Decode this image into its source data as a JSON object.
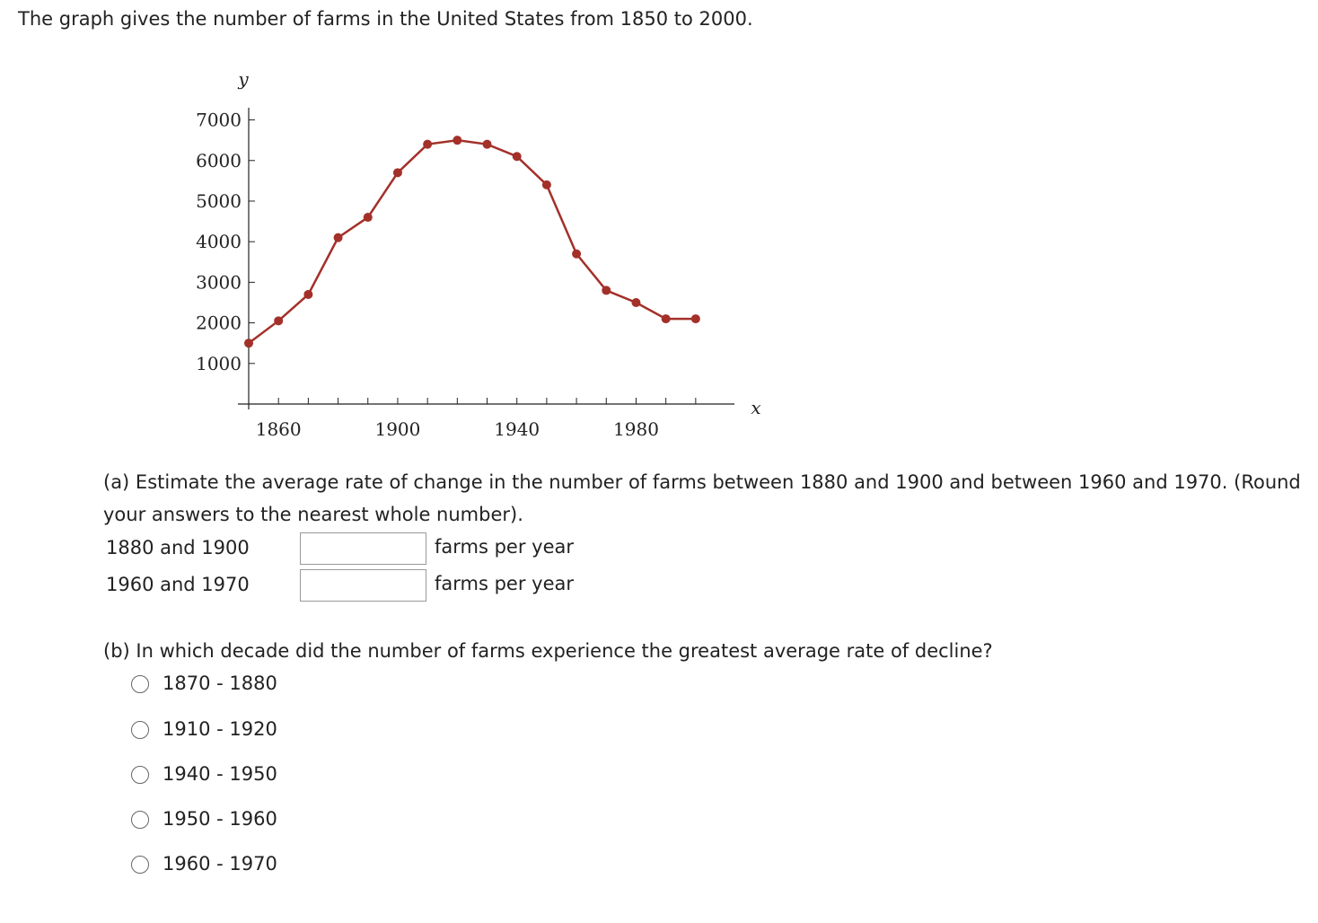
{
  "question": "The graph gives the number of farms in the United States from 1850 to 2000.",
  "chart_data": {
    "type": "line",
    "x_label": "x",
    "y_label": "y",
    "x": [
      1850,
      1860,
      1870,
      1880,
      1890,
      1900,
      1910,
      1920,
      1930,
      1940,
      1950,
      1960,
      1970,
      1980,
      1990,
      2000
    ],
    "series": [
      {
        "name": "farms",
        "color": "#a33029",
        "values": [
          1500,
          2050,
          2700,
          4100,
          4600,
          5700,
          6400,
          6500,
          6400,
          6100,
          5400,
          3700,
          2800,
          2500,
          2100,
          2100
        ]
      }
    ],
    "xlim": [
      1850,
      2013
    ],
    "ylim": [
      0,
      7300
    ],
    "xticks": [
      1860,
      1900,
      1940,
      1980
    ],
    "yticks": [
      1000,
      2000,
      3000,
      4000,
      5000,
      6000,
      7000
    ]
  },
  "part_a": {
    "text": "(a) Estimate the average rate of change in the number of farms between 1880 and 1900 and between 1960 and 1970. (Round your answers to the nearest whole number).",
    "rows": [
      {
        "label": "1880 and 1900",
        "unit": "farms per year"
      },
      {
        "label": "1960 and 1970",
        "unit": "farms per year"
      }
    ]
  },
  "part_b": {
    "text": "(b) In which decade did the number of farms experience the greatest average rate of decline?",
    "options": [
      "1870 - 1880",
      "1910 - 1920",
      "1940 - 1950",
      "1950 - 1960",
      "1960 - 1970"
    ]
  }
}
